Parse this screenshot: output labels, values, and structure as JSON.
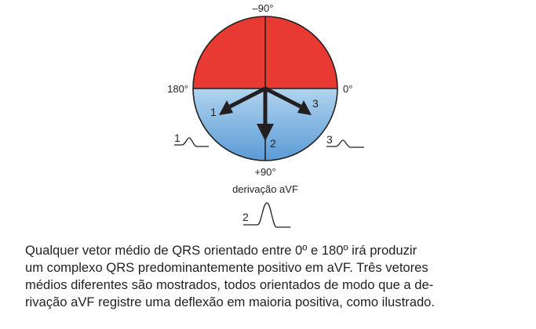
{
  "diagram": {
    "labels": {
      "top": "–90°",
      "bottom": "+90°",
      "left": "180°",
      "right": "0°",
      "lead": "derivação aVF"
    },
    "vectors": [
      {
        "number": "1"
      },
      {
        "number": "2"
      },
      {
        "number": "3"
      }
    ],
    "waveforms": [
      {
        "number": "1"
      },
      {
        "number": "3"
      },
      {
        "number": "2"
      }
    ],
    "colors": {
      "upper_half": "#e83a33",
      "lower_half_top": "#b0d4ee",
      "lower_half_bottom": "#5b9bd6",
      "lines": "#231f20"
    }
  },
  "caption": {
    "lines": [
      "Qualquer vetor médio de QRS orientado entre 0º e 180º irá produzir",
      "um complexo QRS predominantemente positivo em aVF. Três vetores",
      "médios diferentes são mostrados, todos orientados de modo que a de-",
      "rivação aVF registre uma deflexão em maioria positiva, como ilustrado."
    ]
  }
}
